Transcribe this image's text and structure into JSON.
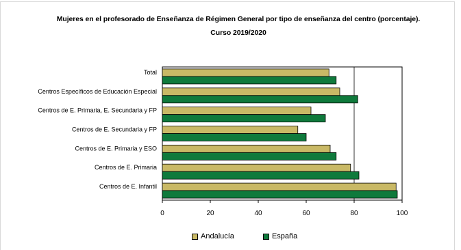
{
  "chart_data": {
    "type": "bar",
    "orientation": "horizontal",
    "title": "Mujeres en el  profesorado de Enseñanza de Régimen General por tipo de enseñanza del centro  (porcentaje).",
    "subtitle": "Curso 2019/2020",
    "categories": [
      "Total",
      "Centros Específicos de Educación Especial",
      "Centros de E. Primaria, E. Secundaria y FP",
      "Centros de E. Secundaria y FP",
      "Centros de E. Primaria y ESO",
      "Centros de E. Primaria",
      "Centros de E. Infantil"
    ],
    "series": [
      {
        "name": "Andalucía",
        "color": "#c9b966",
        "values": [
          69.5,
          74,
          62,
          56.5,
          70,
          78.5,
          97.5
        ]
      },
      {
        "name": "España",
        "color": "#0f7a3c",
        "values": [
          72.5,
          81.5,
          68,
          60,
          72.5,
          82,
          98
        ]
      }
    ],
    "xlim": [
      0,
      100
    ],
    "xticks": [
      "0",
      "20",
      "40",
      "60",
      "80",
      "100"
    ],
    "grid": "vertical at 80",
    "legend_position": "bottom"
  }
}
